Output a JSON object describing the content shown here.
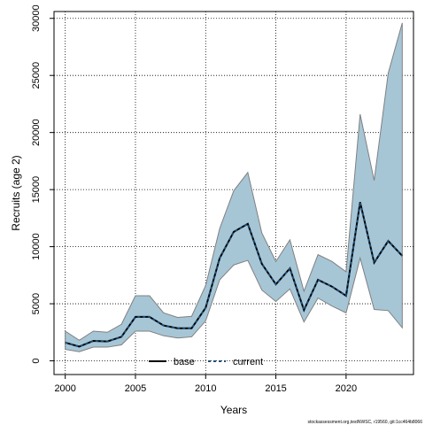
{
  "chart_data": {
    "type": "line",
    "xlabel": "Years",
    "ylabel": "Recruits (age 2)",
    "xlim": [
      1999.2,
      2024.8
    ],
    "ylim": [
      -1200,
      30600
    ],
    "xticks": [
      2000,
      2005,
      2010,
      2015,
      2020
    ],
    "yticks": [
      0,
      5000,
      10000,
      15000,
      20000,
      25000,
      30000
    ],
    "grid": true,
    "x": [
      2000,
      2001,
      2002,
      2003,
      2004,
      2005,
      2006,
      2007,
      2008,
      2009,
      2010,
      2011,
      2012,
      2013,
      2014,
      2015,
      2016,
      2017,
      2018,
      2019,
      2020,
      2021,
      2022,
      2023,
      2024
    ],
    "series": [
      {
        "name": "base",
        "values": [
          1600,
          1250,
          1750,
          1700,
          2100,
          3850,
          3850,
          3100,
          2850,
          2850,
          4650,
          9000,
          11300,
          12000,
          8500,
          6700,
          8100,
          4450,
          7100,
          6500,
          5700,
          13900,
          8600,
          10500,
          9200
        ]
      },
      {
        "name": "current",
        "values": [
          1600,
          1250,
          1750,
          1700,
          2100,
          3850,
          3850,
          3100,
          2850,
          2850,
          4650,
          9000,
          11300,
          12000,
          8500,
          6700,
          8100,
          4450,
          7100,
          6500,
          5700,
          13900,
          8600,
          10500,
          9200
        ]
      }
    ],
    "interval": {
      "lower": [
        1000,
        800,
        1200,
        1200,
        1400,
        2600,
        2600,
        2200,
        2000,
        2100,
        3500,
        7100,
        8400,
        8800,
        6200,
        5200,
        6300,
        3400,
        5500,
        4800,
        4200,
        9000,
        4500,
        4400,
        2900
      ],
      "upper": [
        2600,
        1800,
        2600,
        2500,
        3200,
        5700,
        5700,
        4200,
        3800,
        3900,
        6600,
        11600,
        14900,
        16500,
        11200,
        8700,
        10600,
        6100,
        9300,
        8700,
        7800,
        21600,
        15800,
        25200,
        29600
      ]
    },
    "legend": {
      "placement": "bottom-center"
    },
    "colors": {
      "band": "#a6c6d6",
      "band_edge": "#808080",
      "base": "#000000",
      "current": "#1f4e79"
    }
  },
  "footer": "stockassessment.org,testNWSC, r19560, git:1cc464b8066"
}
